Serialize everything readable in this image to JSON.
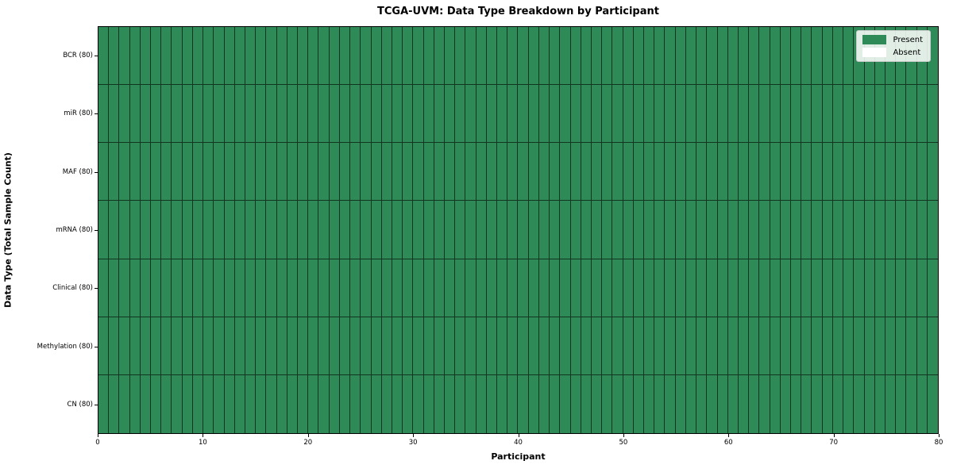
{
  "title": "TCGA-UVM: Data Type Breakdown by Participant",
  "axes": {
    "xlabel": "Participant",
    "ylabel": "Data Type (Total Sample Count)"
  },
  "legend": {
    "items": [
      {
        "label": "Present",
        "color": "#2e8b57"
      },
      {
        "label": "Absent",
        "color": "#ffffff"
      }
    ]
  },
  "colors": {
    "present": "#2e8b57",
    "absent": "#ffffff",
    "cell_edge": "rgba(0,0,0,0.62)"
  },
  "chart_data": {
    "type": "heatmap",
    "title": "TCGA-UVM: Data Type Breakdown by Participant",
    "xlabel": "Participant",
    "ylabel": "Data Type (Total Sample Count)",
    "rows": [
      {
        "label": "BCR (80)",
        "present_count": 80
      },
      {
        "label": "miR (80)",
        "present_count": 80
      },
      {
        "label": "MAF (80)",
        "present_count": 80
      },
      {
        "label": "mRNA (80)",
        "present_count": 80
      },
      {
        "label": "Clinical (80)",
        "present_count": 80
      },
      {
        "label": "Methylation (80)",
        "present_count": 80
      },
      {
        "label": "CN (80)",
        "present_count": 80
      }
    ],
    "n_participants": 80,
    "x_ticks": [
      0,
      10,
      20,
      30,
      40,
      50,
      60,
      70,
      80
    ],
    "xlim": [
      0,
      80
    ],
    "cell_states": "all cells Present for every row and every participant",
    "grid": "cell borders drawn",
    "legend_position": "upper right"
  }
}
